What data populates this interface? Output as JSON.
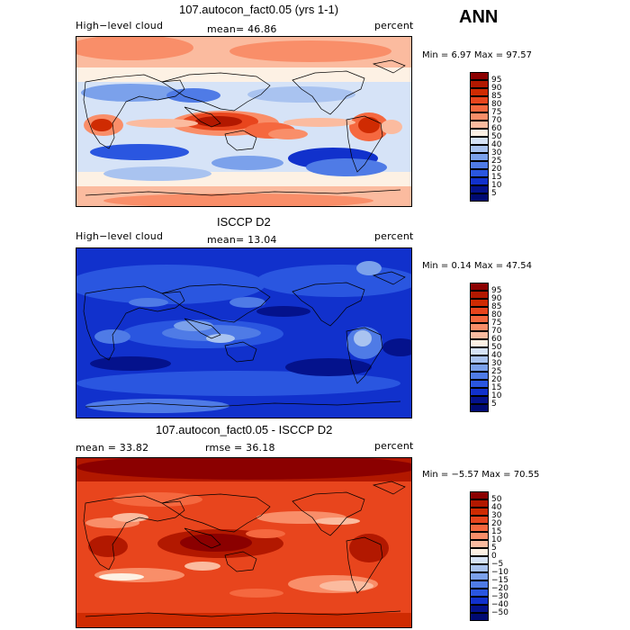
{
  "season": "ANN",
  "panels": [
    {
      "title": "107.autocon_fact0.05 (yrs 1-1)",
      "left_label": "High−level cloud",
      "mid_label": "mean=  46.86",
      "right_label": "percent",
      "minmax": "Min =    6.97  Max =   97.57"
    },
    {
      "title": "ISCCP D2",
      "left_label": "High−level cloud",
      "mid_label": "mean=  13.04",
      "right_label": "percent",
      "minmax": "Min =   0.14  Max =   47.54"
    },
    {
      "title": "107.autocon_fact0.05 - ISCCP D2",
      "left_label": "mean =   33.82",
      "mid_label": "rmse =   36.18",
      "right_label": "percent",
      "minmax": "Min =  −5.57  Max =   70.55"
    }
  ],
  "legend_abs": {
    "labels": [
      "95",
      "90",
      "85",
      "80",
      "75",
      "70",
      "60",
      "50",
      "40",
      "30",
      "25",
      "20",
      "15",
      "10",
      "5"
    ],
    "colors": [
      "#8b0000",
      "#b21800",
      "#cf2b02",
      "#e8451d",
      "#f5683f",
      "#f98e69",
      "#fbbb9f",
      "#fdf1e4",
      "#d6e3f7",
      "#a9c3f0",
      "#7ba1eb",
      "#4f7be6",
      "#2a56e0",
      "#1131cc",
      "#04128c",
      "#000a73"
    ]
  },
  "legend_diff": {
    "labels": [
      "50",
      "40",
      "30",
      "20",
      "15",
      "10",
      "5",
      "0",
      "−5",
      "−10",
      "−15",
      "−20",
      "−30",
      "−40",
      "−50"
    ],
    "colors": [
      "#8b0000",
      "#b21800",
      "#cf2b02",
      "#e8451d",
      "#f5683f",
      "#f98e69",
      "#fbbb9f",
      "#fdf1e4",
      "#d6e3f7",
      "#a9c3f0",
      "#7ba1eb",
      "#4f7be6",
      "#2a56e0",
      "#1131cc",
      "#04128c",
      "#000a73"
    ]
  }
}
